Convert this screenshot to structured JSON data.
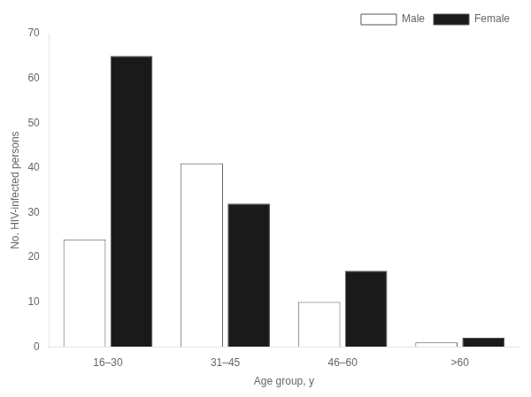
{
  "chart_data": {
    "type": "bar",
    "categories": [
      "16–30",
      "31–45",
      "46–60",
      ">60"
    ],
    "series": [
      {
        "name": "Male",
        "color": "#ffffff",
        "values": [
          24,
          41,
          10,
          1
        ]
      },
      {
        "name": "Female",
        "color": "#1a1a1a",
        "values": [
          65,
          32,
          17,
          2
        ]
      }
    ],
    "xlabel": "Age group, y",
    "ylabel": "No. HIV-infected persons",
    "ylim": [
      0,
      70
    ],
    "yticks": [
      0,
      10,
      20,
      30,
      40,
      50,
      60,
      70
    ],
    "grid": false,
    "legend": "upper right"
  }
}
